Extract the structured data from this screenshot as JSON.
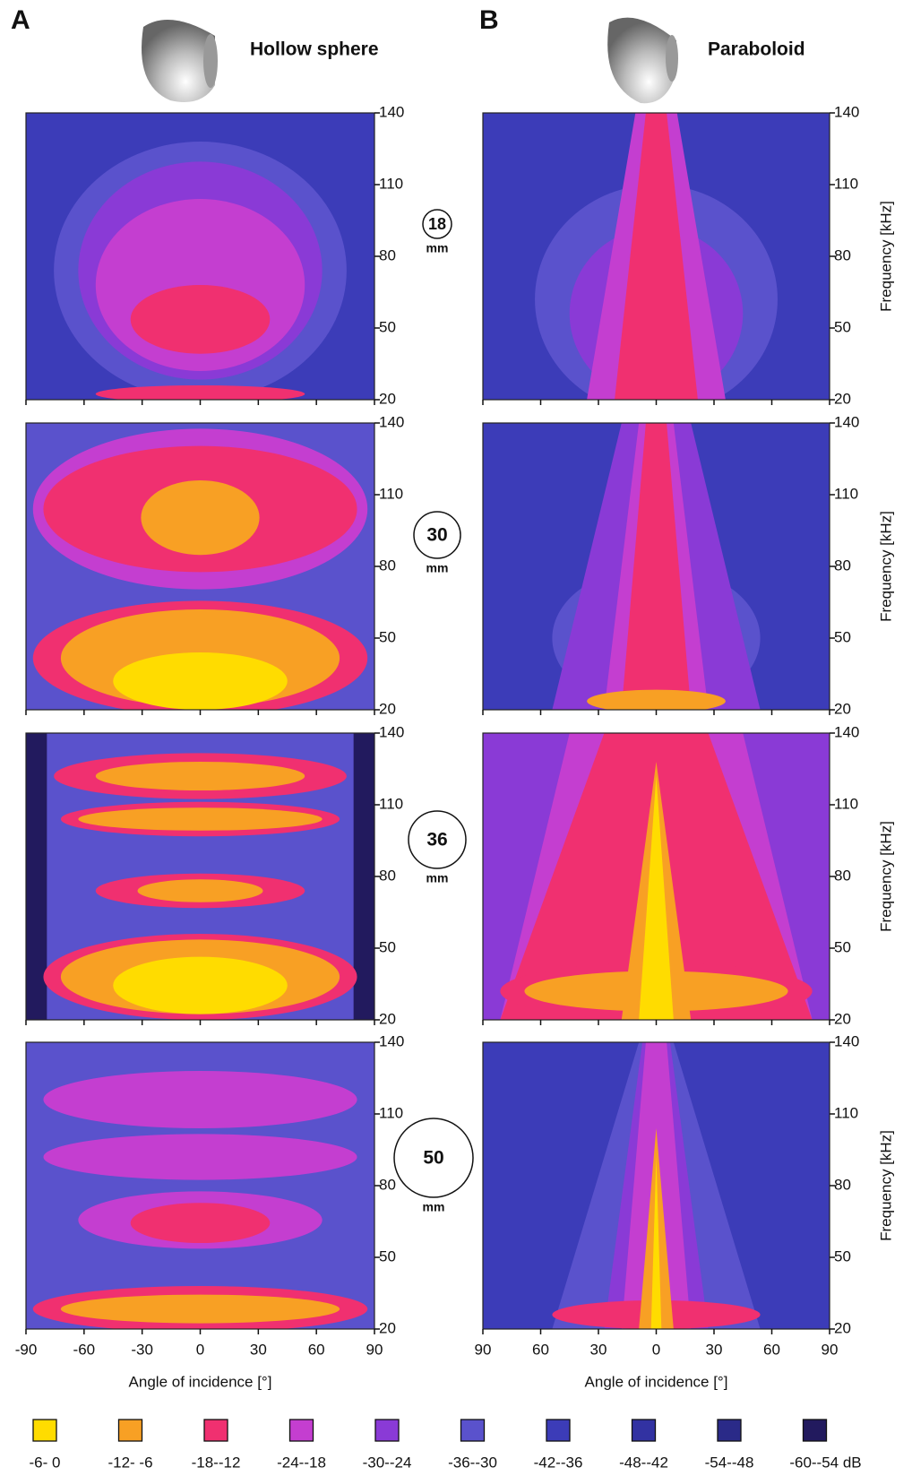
{
  "panels": [
    {
      "letter": "A",
      "title": "Hollow sphere"
    },
    {
      "letter": "B",
      "title": "Paraboloid"
    }
  ],
  "size_labels": [
    {
      "value": "18",
      "unit": "mm"
    },
    {
      "value": "30",
      "unit": "mm"
    },
    {
      "value": "36",
      "unit": "mm"
    },
    {
      "value": "50",
      "unit": "mm"
    }
  ],
  "y_ticks": [
    140,
    110,
    80,
    50,
    20
  ],
  "y_axis_label": "Frequency [kHz]",
  "x_ticks_a": [
    -90,
    -60,
    -30,
    0,
    30,
    60,
    90
  ],
  "x_ticks_b": [
    90,
    60,
    30,
    0,
    30,
    60,
    90
  ],
  "x_axis_label": "Angle of incidence [°]",
  "legend": [
    {
      "label": "-6- 0",
      "color": "#ffdc00"
    },
    {
      "label": "-12- -6",
      "color": "#f8a024"
    },
    {
      "label": "-18--12",
      "color": "#f03070"
    },
    {
      "label": "-24--18",
      "color": "#c43ed0"
    },
    {
      "label": "-30--24",
      "color": "#8a3ad6"
    },
    {
      "label": "-36--30",
      "color": "#5a52cc"
    },
    {
      "label": "-42--36",
      "color": "#3c3cb8"
    },
    {
      "label": "-48--42",
      "color": "#3232a2"
    },
    {
      "label": "-54--48",
      "color": "#2a2a88"
    },
    {
      "label": "-60--54 dB",
      "color": "#221a5e"
    }
  ]
}
